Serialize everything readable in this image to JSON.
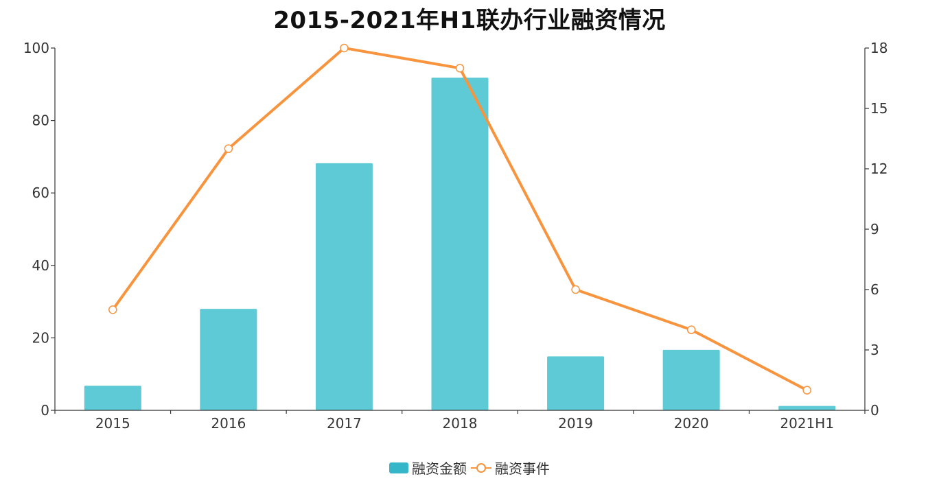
{
  "chart_data": {
    "type": "bar",
    "title": "2015-2021年H1联办行业融资情况",
    "categories": [
      "2015",
      "2016",
      "2017",
      "2018",
      "2019",
      "2020",
      "2021H1"
    ],
    "series": [
      {
        "name": "融资金额",
        "type": "bar",
        "axis": "left",
        "color": "#5ecad6",
        "values": [
          6.8,
          28,
          68.2,
          91.8,
          14.9,
          16.7,
          1.2
        ]
      },
      {
        "name": "融资事件",
        "type": "line",
        "axis": "right",
        "color": "#f7943d",
        "values": [
          5,
          13,
          18,
          17,
          6,
          4,
          1
        ]
      }
    ],
    "y_left": {
      "min": 0,
      "max": 100,
      "ticks": [
        "0",
        "20",
        "40",
        "60",
        "80",
        "100"
      ]
    },
    "y_right": {
      "min": 0,
      "max": 18,
      "ticks": [
        "0",
        "3",
        "6",
        "9",
        "12",
        "15",
        "18"
      ]
    },
    "xlabel": "",
    "ylabel": "",
    "grid": false,
    "legend_position": "bottom-center"
  },
  "legend": {
    "bar_label": "融资金额",
    "line_label": "融资事件"
  }
}
